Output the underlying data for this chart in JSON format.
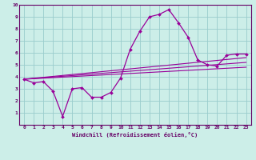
{
  "title": "",
  "xlabel": "Windchill (Refroidissement éolien,°C)",
  "ylabel": "",
  "bg_color": "#cceee8",
  "grid_color": "#99cccc",
  "line_color": "#990099",
  "spine_color": "#660066",
  "tick_color": "#660066",
  "label_color": "#660066",
  "xlim": [
    -0.5,
    23.5
  ],
  "ylim": [
    0,
    10
  ],
  "xticks": [
    0,
    1,
    2,
    3,
    4,
    5,
    6,
    7,
    8,
    9,
    10,
    11,
    12,
    13,
    14,
    15,
    16,
    17,
    18,
    19,
    20,
    21,
    22,
    23
  ],
  "yticks": [
    1,
    2,
    3,
    4,
    5,
    6,
    7,
    8,
    9,
    10
  ],
  "main_x": [
    0,
    1,
    2,
    3,
    4,
    5,
    6,
    7,
    8,
    9,
    10,
    11,
    12,
    13,
    14,
    15,
    16,
    17,
    18,
    19,
    20,
    21,
    22,
    23
  ],
  "main_y": [
    3.8,
    3.5,
    3.6,
    2.8,
    0.7,
    3.0,
    3.1,
    2.3,
    2.3,
    2.7,
    3.9,
    6.3,
    7.8,
    9.0,
    9.2,
    9.6,
    8.5,
    7.3,
    5.4,
    5.0,
    4.9,
    5.8,
    5.9,
    5.9
  ],
  "trend1_x": [
    0,
    23
  ],
  "trend1_y": [
    3.8,
    5.6
  ],
  "trend2_x": [
    0,
    23
  ],
  "trend2_y": [
    3.8,
    5.2
  ],
  "trend3_x": [
    0,
    23
  ],
  "trend3_y": [
    3.8,
    4.8
  ],
  "tick_fontsize": 4.5,
  "xlabel_fontsize": 5.0
}
